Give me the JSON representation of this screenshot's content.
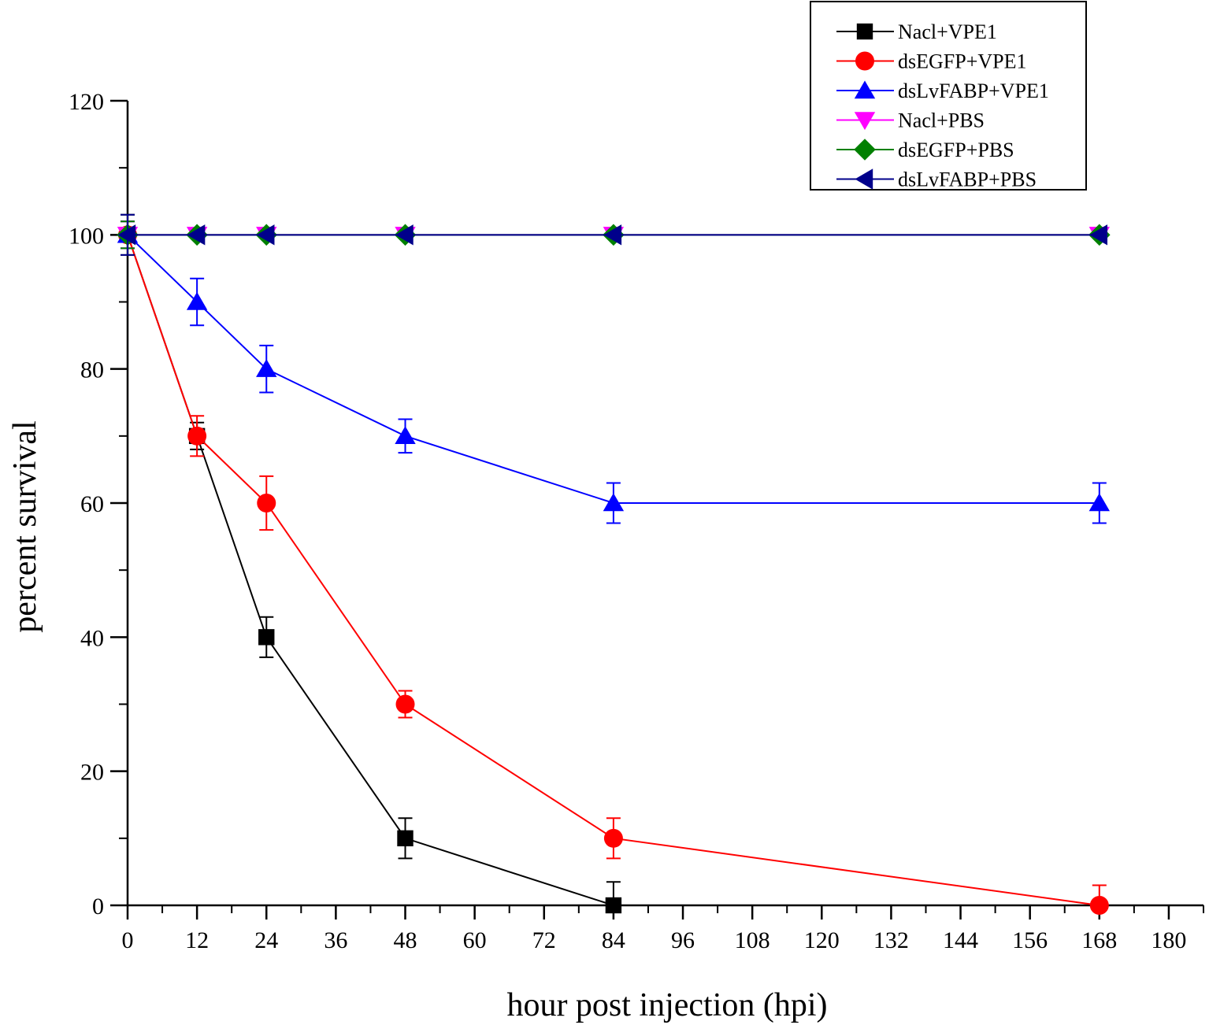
{
  "chart_data": {
    "type": "line",
    "title": "",
    "xlabel": "hour post injection (hpi)",
    "ylabel": "percent survival",
    "xlim": [
      0,
      186
    ],
    "ylim": [
      0,
      120
    ],
    "x_ticks": [
      0,
      12,
      24,
      36,
      48,
      60,
      72,
      84,
      96,
      108,
      120,
      132,
      144,
      156,
      168,
      180
    ],
    "x_tick_labels": [
      "0",
      "12",
      "24",
      "36",
      "48",
      "60",
      "72",
      "84",
      "96",
      "108",
      "120",
      "132",
      "144",
      "156",
      "168",
      "180"
    ],
    "y_ticks": [
      0,
      20,
      40,
      60,
      80,
      100,
      120
    ],
    "y_tick_labels": [
      "0",
      "20",
      "40",
      "60",
      "80",
      "100",
      "120"
    ],
    "grid": false,
    "legend_position": "top-right",
    "series": [
      {
        "name": "Nacl+VPE1",
        "color": "#000000",
        "marker": "square",
        "x": [
          0,
          12,
          24,
          48,
          84
        ],
        "y": [
          100,
          70,
          40,
          10,
          0
        ],
        "err": [
          3,
          2,
          3,
          3,
          3.5
        ]
      },
      {
        "name": "dsEGFP+VPE1",
        "color": "#ff0000",
        "marker": "circle",
        "x": [
          0,
          12,
          24,
          48,
          84,
          168
        ],
        "y": [
          100,
          70,
          60,
          30,
          10,
          0
        ],
        "err": [
          2,
          3,
          4,
          2,
          3,
          3
        ]
      },
      {
        "name": "dsLvFABP+VPE1",
        "color": "#0000ff",
        "marker": "triangle-up",
        "x": [
          0,
          12,
          24,
          48,
          84,
          168
        ],
        "y": [
          100,
          90,
          80,
          70,
          60,
          60
        ],
        "err": [
          2,
          3.5,
          3.5,
          2.5,
          3,
          3
        ]
      },
      {
        "name": "Nacl+PBS",
        "color": "#ff00ff",
        "marker": "triangle-down",
        "x": [
          0,
          12,
          24,
          48,
          84,
          168
        ],
        "y": [
          100,
          100,
          100,
          100,
          100,
          100
        ],
        "err": [
          2,
          0,
          0,
          0,
          0,
          0
        ]
      },
      {
        "name": "dsEGFP+PBS",
        "color": "#008000",
        "marker": "diamond",
        "x": [
          0,
          12,
          24,
          48,
          84,
          168
        ],
        "y": [
          100,
          100,
          100,
          100,
          100,
          100
        ],
        "err": [
          2,
          0,
          0,
          0,
          0,
          0
        ]
      },
      {
        "name": "dsLvFABP+PBS",
        "color": "#00008b",
        "marker": "triangle-left",
        "x": [
          0,
          12,
          24,
          48,
          84,
          168
        ],
        "y": [
          100,
          100,
          100,
          100,
          100,
          100
        ],
        "err": [
          3,
          0,
          0,
          0,
          0,
          0
        ]
      }
    ]
  }
}
